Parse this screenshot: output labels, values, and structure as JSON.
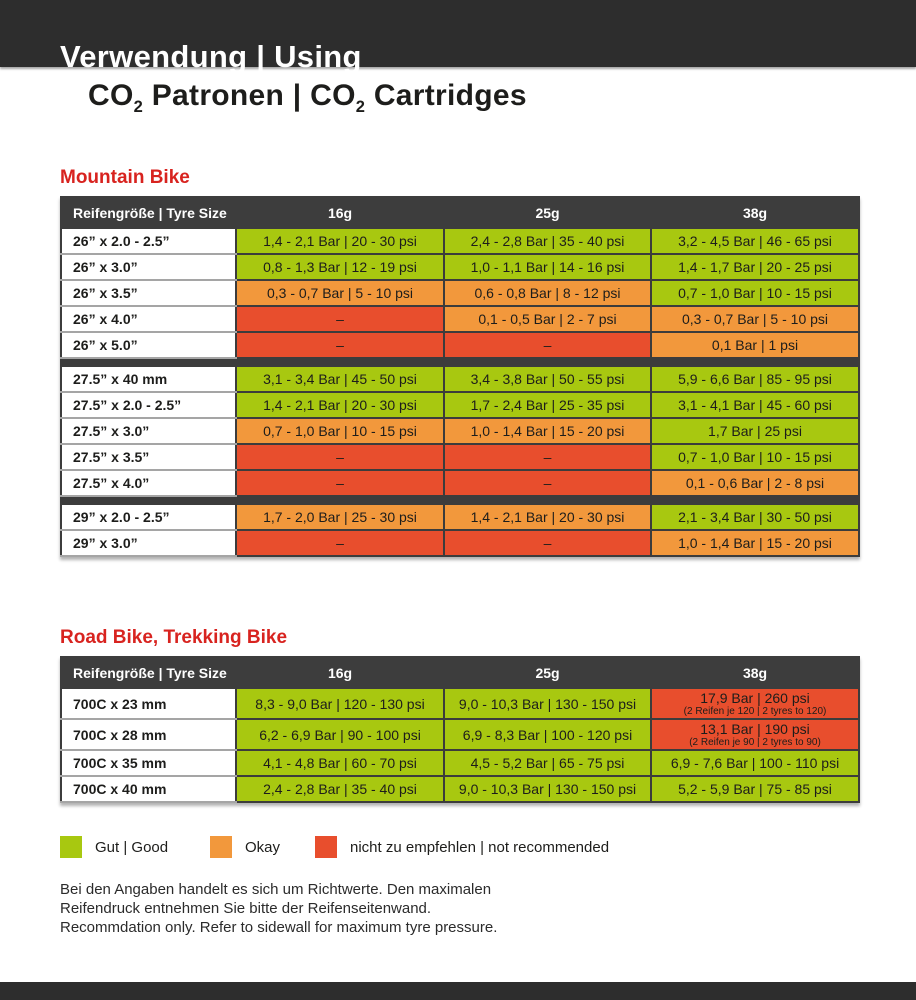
{
  "header": {
    "title": "Verwendung | Using",
    "subtitle": {
      "p1": "CO",
      "s1": "2",
      "p2": " Patronen | CO",
      "s2": "2",
      "p3": " Cartridges"
    }
  },
  "colors": {
    "dark_bar": "#2d2d2d",
    "table_header": "#3d3d3d",
    "good": "#a8c810",
    "okay": "#f2983c",
    "bad": "#e84e2d",
    "accent_red": "#d8231f"
  },
  "tables": [
    {
      "id": "mountain-bike",
      "heading": "Mountain Bike",
      "columns": [
        "Reifengröße | Tyre Size",
        "16g",
        "25g",
        "38g"
      ],
      "groups": [
        [
          {
            "tyre": "26” x 2.0 - 2.5”",
            "cells": [
              {
                "text": "1,4 - 2,1 Bar | 20 - 30 psi",
                "status": "good"
              },
              {
                "text": "2,4 - 2,8 Bar | 35 - 40 psi",
                "status": "good"
              },
              {
                "text": "3,2 - 4,5 Bar | 46 - 65 psi",
                "status": "good"
              }
            ]
          },
          {
            "tyre": "26” x 3.0”",
            "cells": [
              {
                "text": "0,8 - 1,3 Bar | 12 - 19 psi",
                "status": "good"
              },
              {
                "text": "1,0 - 1,1 Bar | 14 - 16 psi",
                "status": "good"
              },
              {
                "text": "1,4 - 1,7 Bar | 20 - 25 psi",
                "status": "good"
              }
            ]
          },
          {
            "tyre": "26” x 3.5”",
            "cells": [
              {
                "text": "0,3 - 0,7 Bar | 5 - 10 psi",
                "status": "okay"
              },
              {
                "text": "0,6 - 0,8 Bar | 8 - 12 psi",
                "status": "okay"
              },
              {
                "text": "0,7 - 1,0 Bar | 10 - 15 psi",
                "status": "good"
              }
            ]
          },
          {
            "tyre": "26” x 4.0”",
            "cells": [
              {
                "text": "–",
                "status": "bad"
              },
              {
                "text": "0,1 - 0,5 Bar | 2 - 7 psi",
                "status": "okay"
              },
              {
                "text": "0,3 - 0,7 Bar | 5 - 10 psi",
                "status": "okay"
              }
            ]
          },
          {
            "tyre": "26” x 5.0”",
            "cells": [
              {
                "text": "–",
                "status": "bad"
              },
              {
                "text": "–",
                "status": "bad"
              },
              {
                "text": "0,1 Bar | 1 psi",
                "status": "okay"
              }
            ]
          }
        ],
        [
          {
            "tyre": "27.5” x 40 mm",
            "cells": [
              {
                "text": "3,1 - 3,4 Bar | 45 - 50 psi",
                "status": "good"
              },
              {
                "text": "3,4 - 3,8 Bar | 50 - 55 psi",
                "status": "good"
              },
              {
                "text": "5,9 - 6,6 Bar | 85 - 95 psi",
                "status": "good"
              }
            ]
          },
          {
            "tyre": "27.5” x 2.0 - 2.5”",
            "cells": [
              {
                "text": "1,4 - 2,1 Bar | 20 - 30 psi",
                "status": "good"
              },
              {
                "text": "1,7 - 2,4 Bar | 25 - 35 psi",
                "status": "good"
              },
              {
                "text": "3,1 - 4,1 Bar | 45 - 60 psi",
                "status": "good"
              }
            ]
          },
          {
            "tyre": "27.5” x 3.0”",
            "cells": [
              {
                "text": "0,7 - 1,0 Bar | 10 - 15 psi",
                "status": "okay"
              },
              {
                "text": "1,0 - 1,4 Bar | 15 - 20 psi",
                "status": "okay"
              },
              {
                "text": "1,7 Bar | 25 psi",
                "status": "good"
              }
            ]
          },
          {
            "tyre": "27.5” x 3.5”",
            "cells": [
              {
                "text": "–",
                "status": "bad"
              },
              {
                "text": "–",
                "status": "bad"
              },
              {
                "text": "0,7 - 1,0 Bar | 10 - 15 psi",
                "status": "good"
              }
            ]
          },
          {
            "tyre": "27.5” x 4.0”",
            "cells": [
              {
                "text": "–",
                "status": "bad"
              },
              {
                "text": "–",
                "status": "bad"
              },
              {
                "text": "0,1 - 0,6 Bar | 2 - 8 psi",
                "status": "okay"
              }
            ]
          }
        ],
        [
          {
            "tyre": "29” x 2.0 - 2.5”",
            "cells": [
              {
                "text": "1,7 - 2,0 Bar | 25 - 30 psi",
                "status": "okay"
              },
              {
                "text": "1,4 - 2,1 Bar | 20 - 30 psi",
                "status": "okay"
              },
              {
                "text": "2,1 - 3,4 Bar | 30 - 50 psi",
                "status": "good"
              }
            ]
          },
          {
            "tyre": "29” x 3.0”",
            "cells": [
              {
                "text": "–",
                "status": "bad"
              },
              {
                "text": "–",
                "status": "bad"
              },
              {
                "text": "1,0 - 1,4 Bar | 15 - 20 psi",
                "status": "okay"
              }
            ]
          }
        ]
      ]
    },
    {
      "id": "road-trekking-bike",
      "heading": "Road Bike, Trekking Bike",
      "columns": [
        "Reifengröße | Tyre Size",
        "16g",
        "25g",
        "38g"
      ],
      "groups": [
        [
          {
            "tyre": "700C x 23 mm",
            "cells": [
              {
                "text": "8,3 - 9,0 Bar | 120 - 130 psi",
                "status": "good"
              },
              {
                "text": "9,0 - 10,3 Bar | 130 - 150 psi",
                "status": "good"
              },
              {
                "text": "17,9 Bar | 260 psi",
                "note": "(2 Reifen je 120 | 2 tyres to 120)",
                "status": "bad"
              }
            ]
          },
          {
            "tyre": "700C x 28 mm",
            "cells": [
              {
                "text": "6,2 - 6,9 Bar | 90 - 100 psi",
                "status": "good"
              },
              {
                "text": "6,9 - 8,3 Bar | 100 - 120 psi",
                "status": "good"
              },
              {
                "text": "13,1 Bar | 190 psi",
                "note": "(2 Reifen je 90 | 2 tyres to 90)",
                "status": "bad"
              }
            ]
          },
          {
            "tyre": "700C x 35 mm",
            "cells": [
              {
                "text": "4,1 - 4,8 Bar | 60 - 70 psi",
                "status": "good"
              },
              {
                "text": "4,5 - 5,2 Bar | 65 - 75 psi",
                "status": "good"
              },
              {
                "text": "6,9 - 7,6 Bar | 100 - 110 psi",
                "status": "good"
              }
            ]
          },
          {
            "tyre": "700C x 40 mm",
            "cells": [
              {
                "text": "2,4 - 2,8 Bar | 35 - 40 psi",
                "status": "good"
              },
              {
                "text": "9,0 - 10,3 Bar | 130 - 150 psi",
                "status": "good"
              },
              {
                "text": "5,2 - 5,9 Bar | 75 - 85 psi",
                "status": "good"
              }
            ]
          }
        ]
      ]
    }
  ],
  "legend": {
    "items": [
      {
        "label": "Gut | Good",
        "status": "good"
      },
      {
        "label": "Okay",
        "status": "okay"
      },
      {
        "label": "nicht zu empfehlen | not recommended",
        "status": "bad"
      }
    ]
  },
  "notes": {
    "de": "Bei den Angaben handelt es sich um Richtwerte. Den maximalen Reifendruck entnehmen Sie bitte der Reifenseitenwand.",
    "en": "Recommdation only. Refer to sidewall for maximum tyre pressure."
  }
}
